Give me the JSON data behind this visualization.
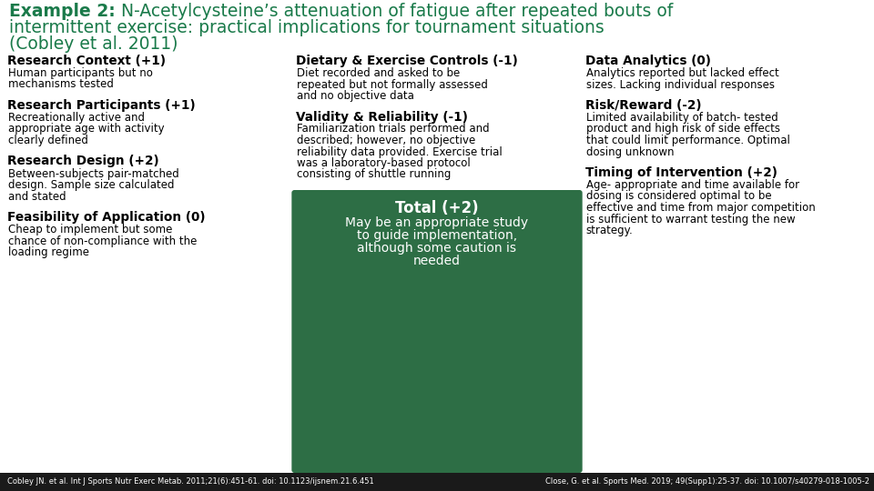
{
  "title_bold": "Example 2:",
  "title_rest": " N-Acetylcysteine’s attenuation of fatigue after repeated bouts of intermittent exercise: practical implications for tournament situations (Cobley et al. 2011)",
  "title_color": "#1a7a4a",
  "bg_color": "#ffffff",
  "footer_bg": "#1a1a1a",
  "footer_text_left": "Cobley JN. et al. Int J Sports Nutr Exerc Metab. 2011;21(6):451-61. doi: 10.1123/ijsnem.21.6.451",
  "footer_text_right": "Close, G. et al. Sports Med. 2019; 49(Supp1):25-37. doi: 10.1007/s40279-018-1005-2",
  "box_color": "#2d6e45",
  "col1_items": [
    {
      "heading": "Research Context (+1)",
      "body": "Human participants but no\nmechanisms tested"
    },
    {
      "heading": "Research Participants (+1)",
      "body": "Recreationally active and\nappropriate age with activity\nclearly defined"
    },
    {
      "heading": "Research Design (+2)",
      "body": "Between-subjects pair-matched\ndesign. Sample size calculated\nand stated"
    },
    {
      "heading": "Feasibility of Application (0)",
      "body": "Cheap to implement but some\nchance of non-compliance with the\nloading regime"
    }
  ],
  "col2_items": [
    {
      "heading": "Dietary & Exercise Controls (-1)",
      "body": "Diet recorded and asked to be\nrepeated but not formally assessed\nand no objective data"
    },
    {
      "heading": "Validity & Reliability (-1)",
      "body": "Familiarization trials performed and\ndescribed; however, no objective\nreliability data provided. Exercise trial\nwas a laboratory-based protocol\nconsisting of shuttle running"
    }
  ],
  "total_heading": "Total (+2)",
  "total_body": "May be an appropriate study\nto guide implementation,\nalthough some caution is\nneeded",
  "col3_items": [
    {
      "heading": "Data Analytics (0)",
      "body": "Analytics reported but lacked effect\nsizes. Lacking individual responses"
    },
    {
      "heading": "Risk/Reward (-2)",
      "body": "Limited availability of batch- tested\nproduct and high risk of side effects\nthat could limit performance. Optimal\ndosing unknown"
    },
    {
      "heading": "Timing of Intervention (+2)",
      "body": "Age- appropriate and time available for\ndosing is considered optimal to be\neffective and time from major competition\nis sufficient to warrant testing the new\nstrategy."
    }
  ],
  "title_fs": 13.5,
  "heading_fs": 9.8,
  "body_fs": 8.5,
  "footer_fs": 6.0
}
